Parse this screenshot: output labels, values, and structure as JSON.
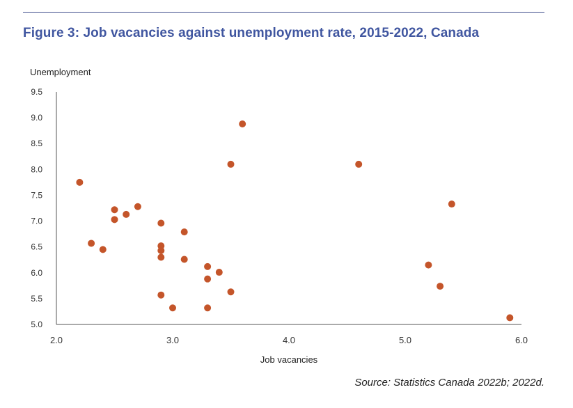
{
  "title": "Figure 3: Job vacancies against unemployment rate, 2015-2022, Canada",
  "source": "Source: Statistics Canada 2022b; 2022d.",
  "colors": {
    "title": "#4056a0",
    "rule": "#3f4d8c",
    "point": "#c4552a",
    "axis": "#555555"
  },
  "chart_data": {
    "type": "scatter",
    "title": "",
    "xlabel": "Job vacancies",
    "ylabel": "Unemployment",
    "xlim": [
      2.0,
      6.0
    ],
    "ylim": [
      5.0,
      9.5
    ],
    "xticks": [
      "2.0",
      "3.0",
      "4.0",
      "5.0",
      "6.0"
    ],
    "yticks": [
      "5.0",
      "5.5",
      "6.0",
      "6.5",
      "7.0",
      "7.5",
      "8.0",
      "8.5",
      "9.0",
      "9.5"
    ],
    "grid": false,
    "legend": "none",
    "points": [
      {
        "x": 2.2,
        "y": 7.75
      },
      {
        "x": 2.3,
        "y": 6.57
      },
      {
        "x": 2.4,
        "y": 6.45
      },
      {
        "x": 2.5,
        "y": 7.22
      },
      {
        "x": 2.5,
        "y": 7.03
      },
      {
        "x": 2.6,
        "y": 7.13
      },
      {
        "x": 2.7,
        "y": 7.28
      },
      {
        "x": 2.9,
        "y": 6.96
      },
      {
        "x": 2.9,
        "y": 6.52
      },
      {
        "x": 2.9,
        "y": 6.43
      },
      {
        "x": 2.9,
        "y": 6.3
      },
      {
        "x": 2.9,
        "y": 5.57
      },
      {
        "x": 3.0,
        "y": 5.32
      },
      {
        "x": 3.1,
        "y": 6.79
      },
      {
        "x": 3.1,
        "y": 6.26
      },
      {
        "x": 3.3,
        "y": 6.12
      },
      {
        "x": 3.3,
        "y": 5.88
      },
      {
        "x": 3.3,
        "y": 5.32
      },
      {
        "x": 3.4,
        "y": 6.01
      },
      {
        "x": 3.5,
        "y": 8.1
      },
      {
        "x": 3.5,
        "y": 5.63
      },
      {
        "x": 3.6,
        "y": 8.88
      },
      {
        "x": 4.6,
        "y": 8.1
      },
      {
        "x": 5.2,
        "y": 6.15
      },
      {
        "x": 5.3,
        "y": 5.74
      },
      {
        "x": 5.4,
        "y": 7.33
      },
      {
        "x": 5.9,
        "y": 5.13
      }
    ]
  }
}
